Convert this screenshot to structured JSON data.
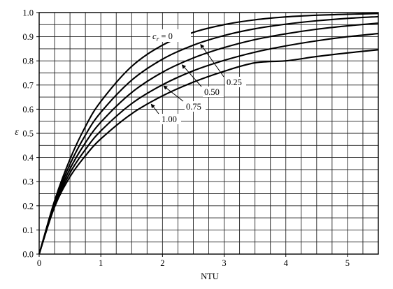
{
  "chart_data": {
    "type": "line",
    "xlabel": "NTU",
    "ylabel": "ε",
    "xlim": [
      0,
      5.5
    ],
    "ylim": [
      0,
      1.0
    ],
    "grid": true,
    "grid_minor_x": 0.25,
    "grid_minor_y": 0.05,
    "x_ticks": [
      "0",
      "1",
      "2",
      "3",
      "4",
      "5"
    ],
    "y_ticks": [
      "0.0",
      "0.1",
      "0.2",
      "0.3",
      "0.4",
      "0.5",
      "0.6",
      "0.7",
      "0.8",
      "0.9",
      "1.0"
    ],
    "series": [
      {
        "name": "c_r = 0",
        "cr": 0.0,
        "x": [
          0,
          0.25,
          0.5,
          0.75,
          1,
          1.5,
          2,
          2.5,
          3,
          3.5,
          4,
          4.5,
          5,
          5.5
        ],
        "y": [
          0,
          0.221,
          0.393,
          0.528,
          0.632,
          0.777,
          0.865,
          0.918,
          0.95,
          0.97,
          0.982,
          0.989,
          0.993,
          0.996
        ]
      },
      {
        "name": "0.25",
        "cr": 0.25,
        "x": [
          0,
          0.25,
          0.5,
          0.75,
          1,
          1.5,
          2,
          2.5,
          3,
          3.5,
          4,
          4.5,
          5,
          5.5
        ],
        "y": [
          0,
          0.214,
          0.372,
          0.493,
          0.587,
          0.72,
          0.807,
          0.865,
          0.905,
          0.933,
          0.952,
          0.966,
          0.976,
          0.983
        ]
      },
      {
        "name": "0.50",
        "cr": 0.5,
        "x": [
          0,
          0.25,
          0.5,
          0.75,
          1,
          1.5,
          2,
          2.5,
          3,
          3.5,
          4,
          4.5,
          5,
          5.5
        ],
        "y": [
          0,
          0.207,
          0.353,
          0.461,
          0.546,
          0.669,
          0.753,
          0.812,
          0.855,
          0.888,
          0.912,
          0.931,
          0.945,
          0.956
        ]
      },
      {
        "name": "0.75",
        "cr": 0.75,
        "x": [
          0,
          0.25,
          0.5,
          0.75,
          1,
          1.5,
          2,
          2.5,
          3,
          3.5,
          4,
          4.5,
          5,
          5.5
        ],
        "y": [
          0,
          0.201,
          0.336,
          0.433,
          0.51,
          0.623,
          0.701,
          0.759,
          0.802,
          0.836,
          0.862,
          0.883,
          0.9,
          0.913
        ]
      },
      {
        "name": "1.00",
        "cr": 1.0,
        "x": [
          0,
          0.25,
          0.5,
          0.75,
          1,
          1.5,
          2,
          2.5,
          3,
          3.5,
          4,
          4.5,
          5,
          5.5
        ],
        "y": [
          0,
          0.195,
          0.32,
          0.407,
          0.477,
          0.581,
          0.655,
          0.712,
          0.757,
          0.792,
          0.8,
          0.818,
          0.833,
          0.846
        ]
      }
    ],
    "annotations": [
      {
        "text": "c",
        "sub": "r",
        "rest": " = 0",
        "series": 0,
        "at_x": 2.05
      },
      {
        "text": "0.25",
        "series": 1,
        "at_x": 2.6
      },
      {
        "text": "0.50",
        "series": 2,
        "at_x": 2.3
      },
      {
        "text": "0.75",
        "series": 3,
        "at_x": 2.0
      },
      {
        "text": "1.00",
        "series": 4,
        "at_x": 1.8
      }
    ]
  }
}
